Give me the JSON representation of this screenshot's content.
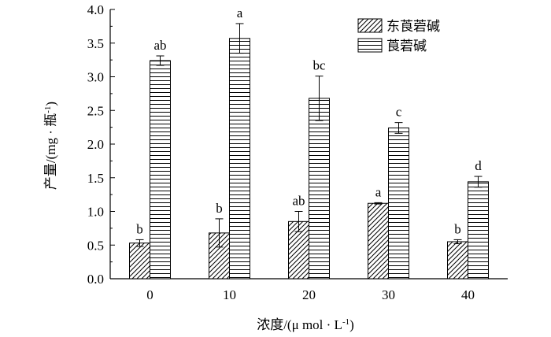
{
  "chart_data": {
    "type": "bar",
    "categories": [
      "0",
      "10",
      "20",
      "30",
      "40"
    ],
    "xlabel": {
      "main": "浓度/(μ mol · L",
      "sup": "-1",
      "end": ")"
    },
    "ylabel": {
      "main": "产量/(mg · 瓶",
      "sup": "-1",
      "end": ")"
    },
    "ylim": [
      0,
      4.0
    ],
    "yticks": [
      "0.0",
      "0.5",
      "1.0",
      "1.5",
      "2.0",
      "2.5",
      "3.0",
      "3.5",
      "4.0"
    ],
    "grid": false,
    "legend_position": "top-right",
    "series": [
      {
        "name": "东莨菪碱",
        "pattern": "diagonal-hatch",
        "values": [
          0.53,
          0.68,
          0.85,
          1.12,
          0.55
        ],
        "errors": [
          0.05,
          0.21,
          0.15,
          0.01,
          0.03
        ],
        "labels": [
          "b",
          "b",
          "ab",
          "a",
          "b"
        ]
      },
      {
        "name": "莨菪碱",
        "pattern": "horizontal-lines",
        "values": [
          3.24,
          3.57,
          2.68,
          2.24,
          1.44
        ],
        "errors": [
          0.07,
          0.22,
          0.33,
          0.08,
          0.08
        ],
        "labels": [
          "ab",
          "a",
          "bc",
          "c",
          "d"
        ]
      }
    ]
  }
}
